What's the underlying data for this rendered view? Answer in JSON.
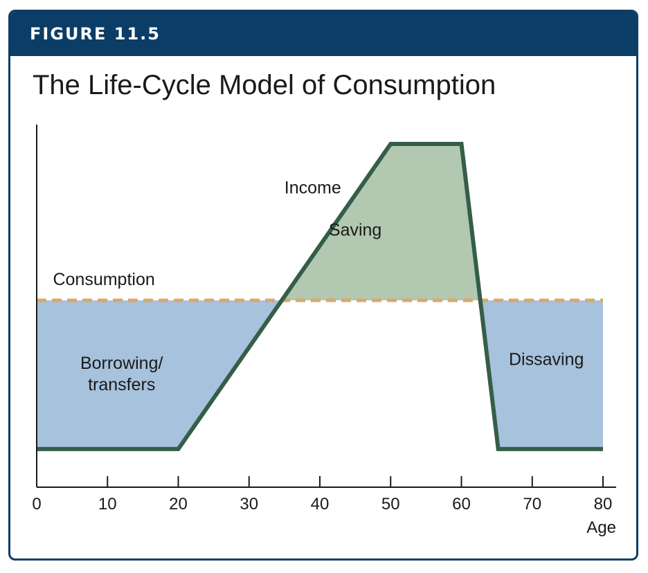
{
  "figure_label": "FIGURE 11.5",
  "chart_data": {
    "type": "area",
    "title": "The Life-Cycle Model of Consumption",
    "xlabel": "Age",
    "ylabel": "",
    "xlim": [
      0,
      80
    ],
    "ylim": [
      0,
      10
    ],
    "x_ticks": [
      0,
      10,
      20,
      30,
      40,
      50,
      60,
      70,
      80
    ],
    "series": [
      {
        "name": "Income",
        "x": [
          0,
          20,
          50,
          60,
          65.2,
          80
        ],
        "y": [
          1,
          1,
          9,
          9,
          1,
          1
        ]
      },
      {
        "name": "Consumption",
        "x": [
          0,
          80
        ],
        "y": [
          4.9,
          4.9
        ]
      }
    ],
    "regions": [
      {
        "label": "Saving",
        "x": 45,
        "y": 6.6
      },
      {
        "label": "Borrowing/\ntransfers",
        "x": 12,
        "y": 3.1
      },
      {
        "label": "Dissaving",
        "x": 72,
        "y": 3.2
      }
    ],
    "annotations": [
      {
        "text": "Income",
        "x": 39,
        "y": 7.7
      },
      {
        "text": "Consumption",
        "x": 9.5,
        "y": 5.3
      }
    ],
    "colors": {
      "income_line": "#355e48",
      "consumption_line": "#d9a86c",
      "saving_fill": "#b2c8b0",
      "borrowing_fill": "#a7c2dc",
      "axis": "#1a1a1a",
      "frame": "#0c3d66"
    }
  }
}
